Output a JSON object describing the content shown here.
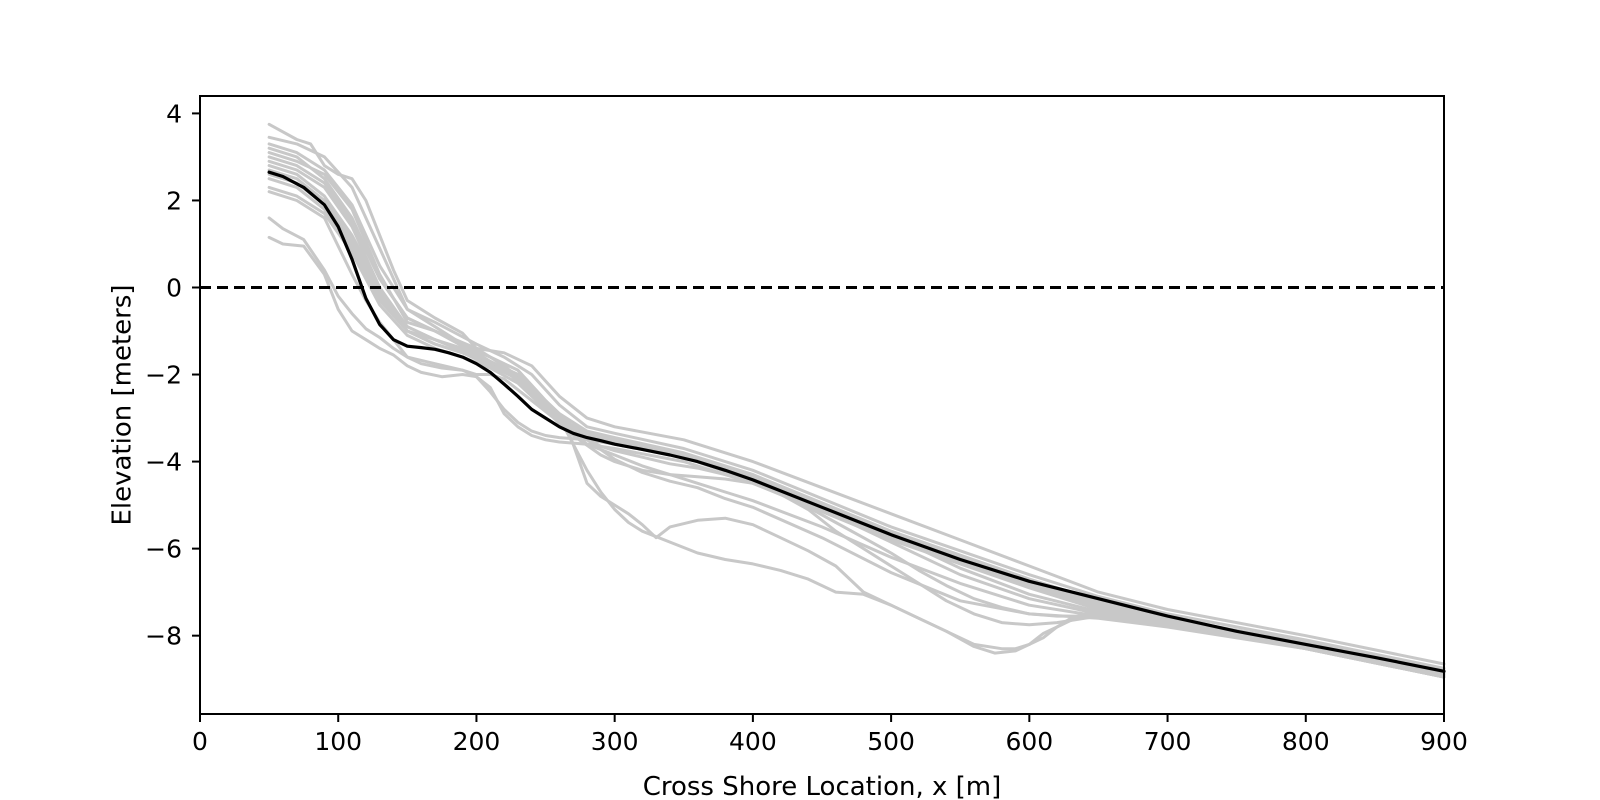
{
  "chart_data": {
    "type": "line",
    "title": "",
    "xlabel": "Cross Shore Location, x [m]",
    "ylabel": "Elevation [meters]",
    "xlim": [
      0,
      900
    ],
    "ylim": [
      -9.8,
      4.4
    ],
    "xticks": [
      0,
      100,
      200,
      300,
      400,
      500,
      600,
      700,
      800,
      900
    ],
    "yticks": [
      4,
      2,
      0,
      -2,
      -4,
      -6,
      -8
    ],
    "xtick_labels": [
      "0",
      "100",
      "200",
      "300",
      "400",
      "500",
      "600",
      "700",
      "800",
      "900"
    ],
    "ytick_labels": [
      "4",
      "2",
      "0",
      "−2",
      "−4",
      "−6",
      "−8"
    ],
    "grid": false,
    "legend": "none",
    "colors": {
      "profiles": "#c8c8c8",
      "mean": "#000000",
      "reference": "#000000"
    },
    "reference_line": {
      "y": 0,
      "style": "dashed"
    },
    "mean_profile": {
      "x": [
        50,
        60,
        75,
        90,
        100,
        110,
        120,
        130,
        140,
        150,
        160,
        170,
        180,
        190,
        200,
        210,
        220,
        230,
        240,
        250,
        260,
        270,
        280,
        290,
        300,
        320,
        340,
        360,
        380,
        400,
        450,
        500,
        550,
        600,
        650,
        700,
        750,
        800,
        850,
        900
      ],
      "y": [
        2.65,
        2.55,
        2.3,
        1.9,
        1.4,
        0.65,
        -0.25,
        -0.85,
        -1.2,
        -1.35,
        -1.38,
        -1.42,
        -1.5,
        -1.6,
        -1.75,
        -1.95,
        -2.22,
        -2.5,
        -2.8,
        -3.0,
        -3.2,
        -3.35,
        -3.45,
        -3.52,
        -3.6,
        -3.72,
        -3.85,
        -4.0,
        -4.2,
        -4.42,
        -5.05,
        -5.68,
        -6.25,
        -6.75,
        -7.15,
        -7.55,
        -7.9,
        -8.2,
        -8.5,
        -8.82
      ]
    },
    "profiles": [
      {
        "x": [
          50,
          70,
          80,
          90,
          100,
          110,
          120,
          130,
          140,
          150,
          170,
          190,
          200,
          220,
          240,
          260,
          280,
          300,
          350,
          400,
          450,
          500,
          550,
          600,
          650,
          700,
          800,
          900
        ],
        "y": [
          3.75,
          3.4,
          3.3,
          2.8,
          2.6,
          2.5,
          2.0,
          1.2,
          0.4,
          -0.3,
          -0.7,
          -1.05,
          -1.4,
          -1.5,
          -1.8,
          -2.5,
          -3.0,
          -3.2,
          -3.5,
          -4.0,
          -4.6,
          -5.2,
          -5.8,
          -6.4,
          -7.0,
          -7.4,
          -8.0,
          -8.65
        ]
      },
      {
        "x": [
          50,
          70,
          90,
          110,
          130,
          150,
          170,
          200,
          220,
          240,
          260,
          280,
          300,
          350,
          400,
          500,
          600,
          650,
          700,
          800,
          900
        ],
        "y": [
          3.45,
          3.3,
          3.0,
          2.3,
          0.9,
          -0.5,
          -0.8,
          -1.3,
          -1.6,
          -2.0,
          -2.7,
          -3.2,
          -3.35,
          -3.7,
          -4.2,
          -5.5,
          -6.6,
          -7.1,
          -7.5,
          -8.1,
          -8.75
        ]
      },
      {
        "x": [
          50,
          70,
          90,
          110,
          130,
          150,
          170,
          200,
          220,
          240,
          260,
          280,
          300,
          350,
          400,
          500,
          600,
          650,
          700,
          800,
          900
        ],
        "y": [
          3.1,
          2.9,
          2.6,
          1.8,
          0.3,
          -0.8,
          -1.0,
          -1.4,
          -1.8,
          -2.3,
          -2.9,
          -3.3,
          -3.45,
          -3.8,
          -4.3,
          -5.6,
          -6.7,
          -7.2,
          -7.6,
          -8.15,
          -8.8
        ]
      },
      {
        "x": [
          50,
          70,
          90,
          110,
          130,
          150,
          170,
          200,
          220,
          240,
          260,
          280,
          300,
          350,
          400,
          500,
          600,
          650,
          700,
          800,
          900
        ],
        "y": [
          2.9,
          2.7,
          2.3,
          1.4,
          0.0,
          -1.0,
          -1.2,
          -1.5,
          -1.9,
          -2.4,
          -3.0,
          -3.35,
          -3.5,
          -3.85,
          -4.35,
          -5.65,
          -6.75,
          -7.25,
          -7.6,
          -8.2,
          -8.85
        ]
      },
      {
        "x": [
          50,
          70,
          90,
          110,
          120,
          130,
          150,
          170,
          190,
          200,
          210,
          220,
          240,
          260,
          280,
          300,
          350,
          400,
          500,
          600,
          650,
          700,
          800,
          900
        ],
        "y": [
          2.2,
          2.0,
          1.6,
          0.3,
          -0.3,
          -0.8,
          -1.6,
          -1.75,
          -1.9,
          -2.0,
          -2.0,
          -2.1,
          -2.6,
          -3.1,
          -3.4,
          -3.55,
          -3.9,
          -4.4,
          -5.7,
          -6.8,
          -7.3,
          -7.65,
          -8.25,
          -8.9
        ]
      },
      {
        "x": [
          50,
          60,
          75,
          90,
          100,
          110,
          120,
          130,
          140,
          150,
          160,
          175,
          190,
          200,
          210,
          220,
          230,
          240,
          250,
          260,
          280,
          300,
          350,
          400,
          500,
          600,
          650,
          700,
          800,
          900
        ],
        "y": [
          1.6,
          1.35,
          1.1,
          0.4,
          -0.2,
          -0.6,
          -0.95,
          -1.15,
          -1.4,
          -1.6,
          -1.75,
          -1.85,
          -1.9,
          -2.05,
          -2.4,
          -2.8,
          -3.1,
          -3.3,
          -3.4,
          -3.45,
          -3.5,
          -3.6,
          -3.9,
          -4.45,
          -5.75,
          -6.85,
          -7.35,
          -7.7,
          -8.3,
          -8.95
        ]
      },
      {
        "x": [
          50,
          60,
          75,
          90,
          100,
          110,
          120,
          130,
          140,
          150,
          160,
          175,
          190,
          200,
          210,
          220,
          230,
          240,
          250,
          260,
          280,
          300,
          350,
          400,
          500,
          600,
          650,
          700,
          800,
          900
        ],
        "y": [
          1.15,
          1.0,
          0.95,
          0.3,
          -0.5,
          -1.0,
          -1.2,
          -1.4,
          -1.55,
          -1.8,
          -1.95,
          -2.05,
          -2.0,
          -2.05,
          -2.3,
          -2.9,
          -3.2,
          -3.4,
          -3.5,
          -3.55,
          -3.6,
          -3.7,
          -4.0,
          -4.5,
          -5.8,
          -6.9,
          -7.4,
          -7.75,
          -8.3,
          -8.95
        ]
      },
      {
        "x": [
          50,
          70,
          90,
          110,
          130,
          150,
          170,
          190,
          210,
          230,
          250,
          265,
          280,
          300,
          320,
          340,
          360,
          380,
          400,
          450,
          500,
          550,
          600,
          650,
          700,
          800,
          900
        ],
        "y": [
          2.5,
          2.3,
          1.8,
          0.9,
          -0.3,
          -1.0,
          -1.3,
          -1.5,
          -1.75,
          -2.1,
          -2.8,
          -3.2,
          -3.6,
          -3.85,
          -4.1,
          -4.3,
          -4.5,
          -4.7,
          -4.9,
          -5.5,
          -6.2,
          -6.8,
          -7.3,
          -7.55,
          -7.75,
          -8.25,
          -8.9
        ]
      },
      {
        "x": [
          50,
          70,
          90,
          110,
          130,
          150,
          170,
          190,
          210,
          230,
          250,
          265,
          280,
          300,
          320,
          340,
          360,
          380,
          400,
          450,
          500,
          550,
          600,
          650,
          700,
          800,
          900
        ],
        "y": [
          2.7,
          2.5,
          2.0,
          1.1,
          -0.1,
          -0.9,
          -1.2,
          -1.45,
          -1.7,
          -2.0,
          -2.7,
          -3.1,
          -3.5,
          -3.95,
          -4.25,
          -4.45,
          -4.6,
          -4.85,
          -5.05,
          -5.75,
          -6.55,
          -7.2,
          -7.5,
          -7.6,
          -7.8,
          -8.3,
          -8.95
        ]
      },
      {
        "x": [
          50,
          70,
          90,
          110,
          130,
          150,
          170,
          190,
          210,
          230,
          250,
          265,
          270,
          280,
          290,
          300,
          310,
          320,
          330,
          340,
          360,
          380,
          400,
          420,
          440,
          460,
          480,
          500,
          520,
          540,
          560,
          580,
          590,
          600,
          610,
          620,
          630,
          640,
          650,
          700,
          800,
          900
        ],
        "y": [
          3.0,
          2.8,
          2.4,
          1.5,
          0.2,
          -0.7,
          -1.0,
          -1.3,
          -1.6,
          -1.9,
          -2.6,
          -3.2,
          -3.6,
          -4.5,
          -4.8,
          -5.0,
          -5.2,
          -5.45,
          -5.75,
          -5.5,
          -5.35,
          -5.3,
          -5.45,
          -5.75,
          -6.05,
          -6.4,
          -7.0,
          -7.3,
          -7.6,
          -7.9,
          -8.2,
          -8.3,
          -8.3,
          -8.2,
          -8.05,
          -7.8,
          -7.6,
          -7.5,
          -7.5,
          -7.7,
          -8.25,
          -8.9
        ]
      },
      {
        "x": [
          50,
          70,
          90,
          110,
          130,
          150,
          170,
          190,
          210,
          230,
          250,
          265,
          270,
          280,
          290,
          300,
          310,
          320,
          340,
          360,
          380,
          400,
          420,
          440,
          460,
          480,
          500,
          520,
          540,
          560,
          575,
          590,
          600,
          610,
          620,
          630,
          640,
          650,
          700,
          800,
          900
        ],
        "y": [
          2.3,
          2.1,
          1.7,
          0.8,
          -0.4,
          -1.1,
          -1.4,
          -1.6,
          -1.85,
          -2.2,
          -2.8,
          -3.3,
          -3.6,
          -4.2,
          -4.7,
          -5.1,
          -5.4,
          -5.6,
          -5.85,
          -6.1,
          -6.25,
          -6.35,
          -6.5,
          -6.7,
          -7.0,
          -7.05,
          -7.3,
          -7.6,
          -7.9,
          -8.25,
          -8.4,
          -8.35,
          -8.2,
          -7.95,
          -7.8,
          -7.65,
          -7.55,
          -7.55,
          -7.7,
          -8.3,
          -8.95
        ]
      },
      {
        "x": [
          50,
          70,
          90,
          110,
          130,
          150,
          170,
          190,
          210,
          230,
          250,
          270,
          290,
          300,
          320,
          340,
          360,
          380,
          400,
          420,
          440,
          460,
          480,
          500,
          520,
          540,
          560,
          580,
          600,
          620,
          640,
          650,
          700,
          800,
          900
        ],
        "y": [
          2.6,
          2.4,
          1.9,
          1.0,
          -0.2,
          -1.0,
          -1.3,
          -1.5,
          -1.8,
          -2.1,
          -2.75,
          -3.4,
          -3.85,
          -4.0,
          -4.2,
          -4.3,
          -4.35,
          -4.4,
          -4.5,
          -4.75,
          -5.1,
          -5.6,
          -6.0,
          -6.4,
          -6.8,
          -7.2,
          -7.5,
          -7.7,
          -7.75,
          -7.7,
          -7.6,
          -7.55,
          -7.7,
          -8.25,
          -8.9
        ]
      },
      {
        "x": [
          50,
          70,
          90,
          110,
          130,
          150,
          170,
          190,
          210,
          230,
          250,
          270,
          290,
          300,
          320,
          340,
          360,
          380,
          400,
          420,
          440,
          460,
          480,
          500,
          520,
          540,
          560,
          580,
          600,
          620,
          640,
          650,
          700,
          800,
          900
        ],
        "y": [
          2.8,
          2.6,
          2.1,
          1.2,
          0.0,
          -0.9,
          -1.2,
          -1.45,
          -1.7,
          -2.05,
          -2.7,
          -3.3,
          -3.65,
          -3.75,
          -3.9,
          -4.05,
          -4.15,
          -4.3,
          -4.45,
          -4.75,
          -5.05,
          -5.4,
          -5.75,
          -6.1,
          -6.5,
          -6.85,
          -7.15,
          -7.35,
          -7.5,
          -7.55,
          -7.55,
          -7.5,
          -7.65,
          -8.2,
          -8.85
        ]
      },
      {
        "x": [
          50,
          70,
          90,
          110,
          130,
          150,
          170,
          190,
          210,
          230,
          250,
          270,
          290,
          300,
          350,
          400,
          450,
          500,
          550,
          600,
          650,
          700,
          800,
          900
        ],
        "y": [
          3.3,
          3.1,
          2.7,
          1.9,
          0.5,
          -0.5,
          -0.9,
          -1.3,
          -1.6,
          -1.9,
          -2.6,
          -3.2,
          -3.45,
          -3.55,
          -3.85,
          -4.3,
          -5.0,
          -5.7,
          -6.45,
          -7.05,
          -7.45,
          -7.65,
          -8.2,
          -8.85
        ]
      },
      {
        "x": [
          50,
          70,
          90,
          110,
          130,
          150,
          170,
          190,
          210,
          230,
          250,
          270,
          290,
          300,
          350,
          400,
          450,
          500,
          550,
          600,
          650,
          700,
          800,
          900
        ],
        "y": [
          3.2,
          3.0,
          2.5,
          1.6,
          0.2,
          -0.7,
          -1.0,
          -1.35,
          -1.7,
          -2.0,
          -2.65,
          -3.25,
          -3.5,
          -3.6,
          -3.9,
          -4.35,
          -5.1,
          -5.85,
          -6.6,
          -7.15,
          -7.5,
          -7.7,
          -8.25,
          -8.9
        ]
      }
    ]
  }
}
